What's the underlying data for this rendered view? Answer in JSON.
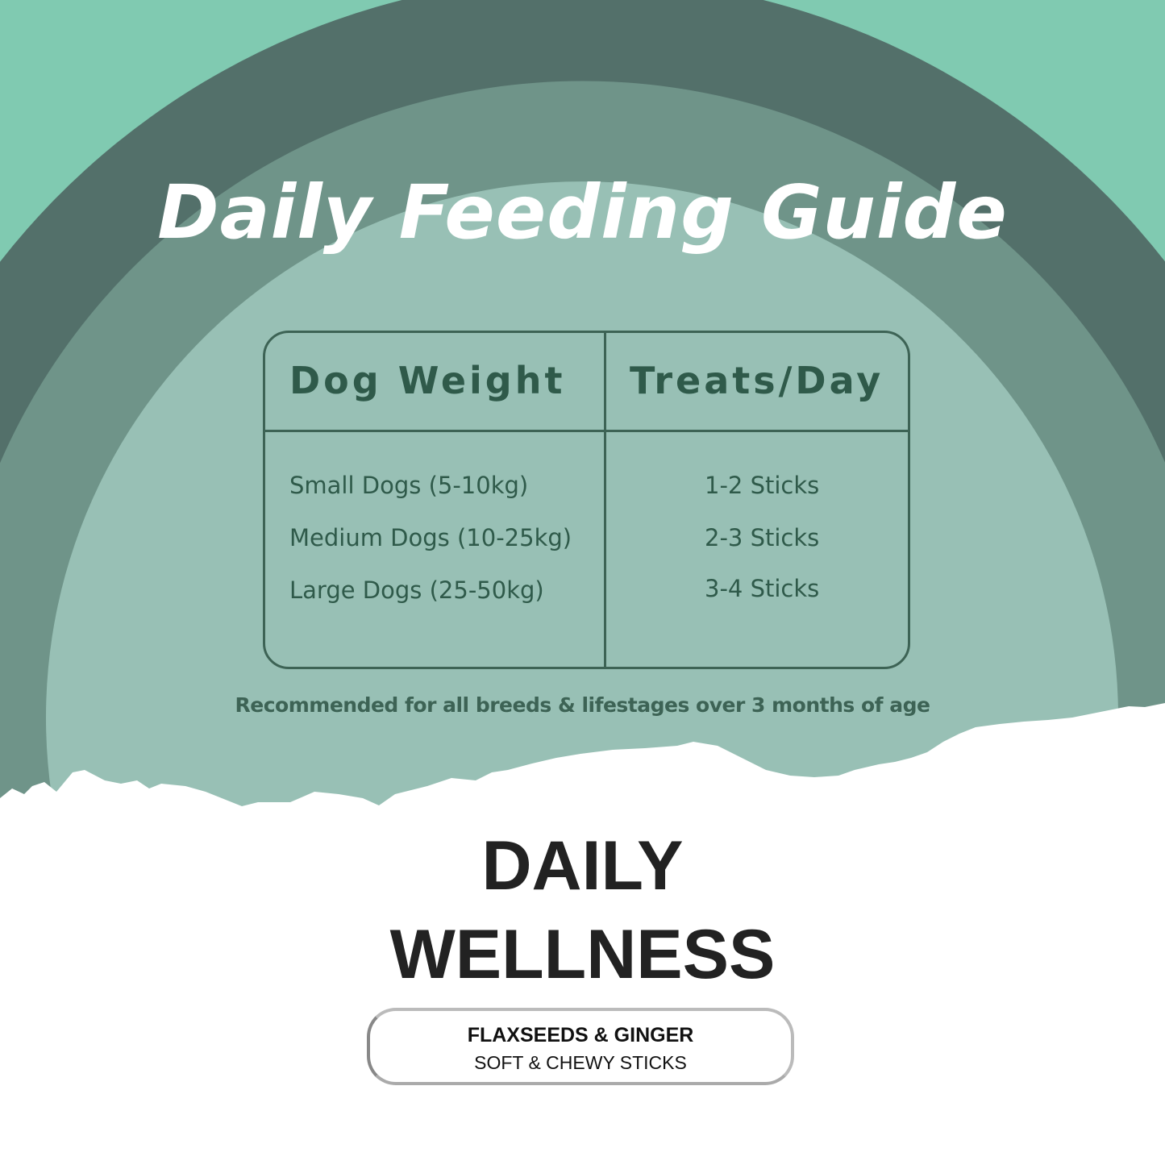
{
  "colors": {
    "background": "#80cab1",
    "outer_ring": "#53706a",
    "middle_ring": "#6f9489",
    "inner_ring": "#98c0b5",
    "text_green": "#2f5a4a"
  },
  "title": "Daily Feeding Guide",
  "table": {
    "headers": [
      "Dog Weight",
      "Treats/Day"
    ],
    "rows": [
      {
        "weight": "Small Dogs (5-10kg)",
        "treats": "1-2 Sticks"
      },
      {
        "weight": "Medium Dogs (10-25kg)",
        "treats": "2-3 Sticks"
      },
      {
        "weight": "Large Dogs (25-50kg)",
        "treats": "3-4 Sticks"
      }
    ]
  },
  "note": "Recommended for all breeds & lifestages over 3 months of age",
  "brand": {
    "line1": "DAILY",
    "line2": "WELLNESS"
  },
  "badge": {
    "line1": "FLAXSEEDS & GINGER",
    "line2": "SOFT & CHEWY STICKS"
  }
}
